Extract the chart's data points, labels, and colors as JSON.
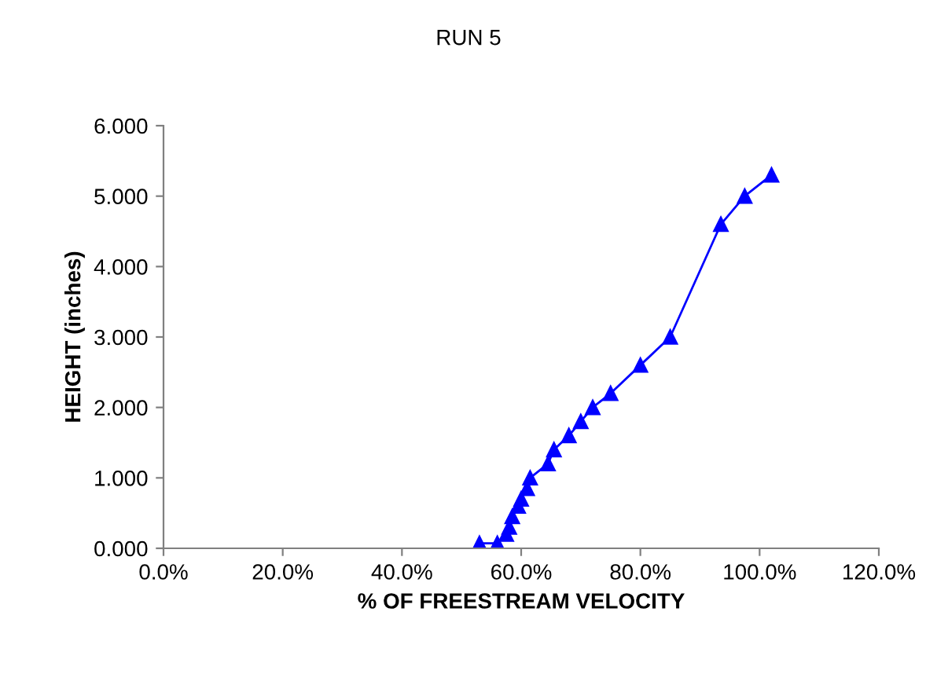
{
  "chart_data": {
    "type": "line",
    "title": "RUN 5",
    "xlabel": "% OF FREESTREAM VELOCITY",
    "ylabel": "HEIGHT (inches)",
    "x": [
      53,
      56,
      57.5,
      58,
      58.5,
      59.5,
      60,
      61,
      61.5,
      64.5,
      65.5,
      68,
      70,
      72,
      75,
      80,
      85,
      93.5,
      97.5,
      102
    ],
    "series": [
      {
        "color": "#0000ff",
        "values": [
          0.07,
          0.07,
          0.2,
          0.3,
          0.45,
          0.6,
          0.7,
          0.85,
          1.0,
          1.2,
          1.4,
          1.6,
          1.8,
          2.0,
          2.2,
          2.6,
          3.0,
          4.6,
          5.0,
          5.3
        ]
      }
    ],
    "marker": "triangle",
    "line_style": "solid",
    "grid": false,
    "legend": false,
    "xlim": [
      0,
      120
    ],
    "xticks": [
      {
        "value": 0,
        "label": "0.0%"
      },
      {
        "value": 20,
        "label": "20.0%"
      },
      {
        "value": 40,
        "label": "40.0%"
      },
      {
        "value": 60,
        "label": "60.0%"
      },
      {
        "value": 80,
        "label": "80.0%"
      },
      {
        "value": 100,
        "label": "100.0%"
      },
      {
        "value": 120,
        "label": "120.0%"
      }
    ],
    "ylim": [
      0,
      6
    ],
    "yticks": [
      {
        "value": 0,
        "label": "0.000"
      },
      {
        "value": 1,
        "label": "1.000"
      },
      {
        "value": 2,
        "label": "2.000"
      },
      {
        "value": 3,
        "label": "3.000"
      },
      {
        "value": 4,
        "label": "4.000"
      },
      {
        "value": 5,
        "label": "5.000"
      },
      {
        "value": 6,
        "label": "6.000"
      }
    ]
  }
}
